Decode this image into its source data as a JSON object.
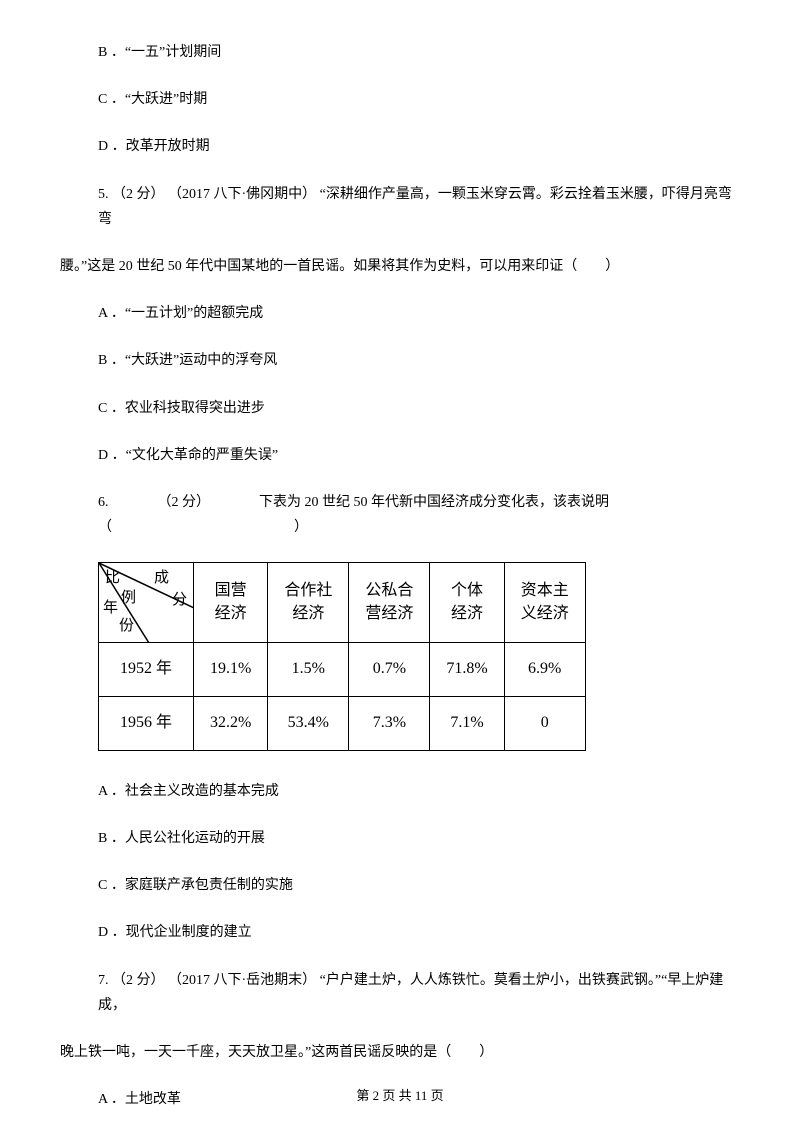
{
  "q4_options": {
    "B": "B ．“一五”计划期间",
    "C": "C ．“大跃进”时期",
    "D": "D ．改革开放时期"
  },
  "q5": {
    "text": "5.  （2 分）  （2017 八下·佛冈期中）  “深耕细作产量高，一颗玉米穿云霄。彩云拴着玉米腰，吓得月亮弯弯",
    "text2": "腰。”这是 20 世纪 50 年代中国某地的一首民谣。如果将其作为史料，可以用来印证（　　）",
    "A": "A ．“一五计划”的超额完成",
    "B": "B ．“大跃进”运动中的浮夸风",
    "C": "C ．农业科技取得突出进步",
    "D": "D ．“文化大革命的严重失误”"
  },
  "q6": {
    "text": "6.　　　　（2 分）　　　　下表为 20 世纪 50 年代新中国经济成分变化表，该表说明（　　　　　　　　　　　　　）",
    "table": {
      "diag_top": "成",
      "diag_left": "比",
      "diag_mid": "例",
      "diag_right": "分",
      "diag_bottom": "年",
      "diag_bottom2": "份",
      "headers": [
        "国营经济",
        "合作社经济",
        "公私合营经济",
        "个体经济",
        "资本主义经济"
      ],
      "rows": [
        {
          "year": "1952 年",
          "values": [
            "19.1%",
            "1.5%",
            "0.7%",
            "71.8%",
            "6.9%"
          ]
        },
        {
          "year": "1956 年",
          "values": [
            "32.2%",
            "53.4%",
            "7.3%",
            "7.1%",
            "0"
          ]
        }
      ]
    },
    "A": "A ．社会主义改造的基本完成",
    "B": "B ．人民公社化运动的开展",
    "C": "C ．家庭联产承包责任制的实施",
    "D": "D ．现代企业制度的建立"
  },
  "q7": {
    "text": "7.  （2 分）  （2017 八下·岳池期末）  “户户建土炉，人人炼铁忙。莫看土炉小，出铁赛武钢。”“早上炉建成，",
    "text2": "晚上铁一吨，一天一千座，天天放卫星。”这两首民谣反映的是（　　）",
    "A": "A ．土地改革"
  },
  "footer": "第 2 页 共 11 页"
}
